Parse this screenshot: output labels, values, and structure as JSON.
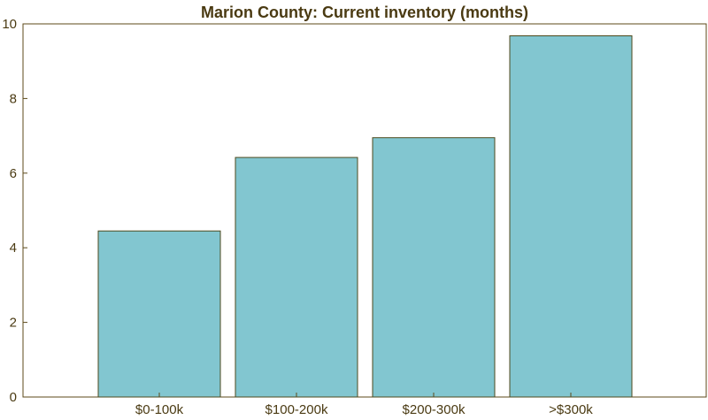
{
  "chart_data": {
    "type": "bar",
    "title": "Marion County: Current inventory (months)",
    "xlabel": "",
    "ylabel": "",
    "categories": [
      "$0-100k",
      "$100-200k",
      "$200-300k",
      ">$300k"
    ],
    "values": [
      4.45,
      6.42,
      6.95,
      9.68
    ],
    "ylim": [
      0,
      10
    ],
    "yticks": [
      0,
      2,
      4,
      6,
      8,
      10
    ],
    "grid": false,
    "legend": "none",
    "colors": {
      "bar_fill": "#82c6d0",
      "bar_stroke": "#4d4a1e",
      "axis": "#5c4a1a",
      "text": "#4a3a12"
    }
  }
}
